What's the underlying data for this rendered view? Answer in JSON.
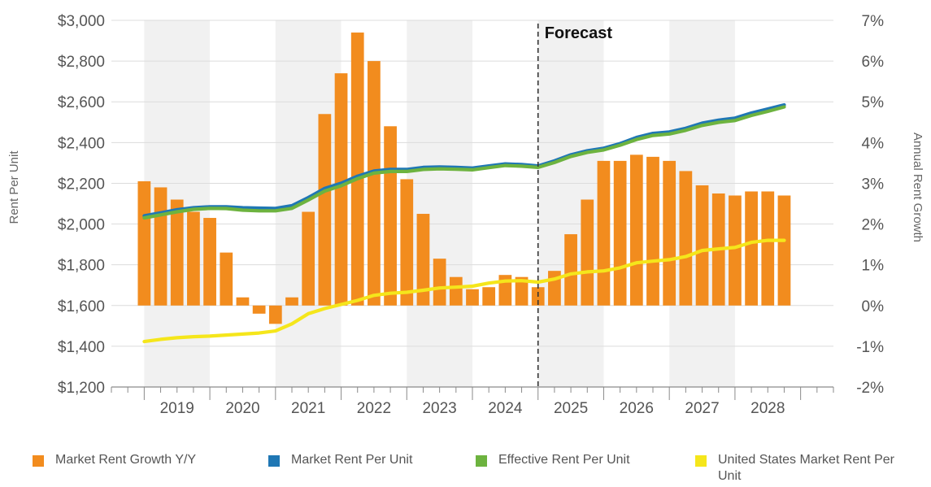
{
  "chart_data": {
    "type": "bar+line",
    "title": "",
    "annotation": "Forecast",
    "ylabel_left": "Rent Per Unit",
    "ylabel_right": "Annual Rent Growth",
    "ylim_left": [
      1200,
      3000
    ],
    "ylim_right": [
      -2,
      7
    ],
    "yticks_left": [
      "$1,200",
      "$1,400",
      "$1,600",
      "$1,800",
      "$2,000",
      "$2,200",
      "$2,400",
      "$2,600",
      "$2,800",
      "$3,000"
    ],
    "yticks_right": [
      "-2%",
      "-1%",
      "0%",
      "1%",
      "2%",
      "3%",
      "4%",
      "5%",
      "6%",
      "7%"
    ],
    "x_year_labels": [
      "2019",
      "2020",
      "2021",
      "2022",
      "2023",
      "2024",
      "2025",
      "2026",
      "2027",
      "2028"
    ],
    "forecast_start": 2024.5,
    "x_quarters": [
      2018.5,
      2018.75,
      2019.0,
      2019.25,
      2019.5,
      2019.75,
      2020.0,
      2020.25,
      2020.5,
      2020.75,
      2021.0,
      2021.25,
      2021.5,
      2021.75,
      2022.0,
      2022.25,
      2022.5,
      2022.75,
      2023.0,
      2023.25,
      2023.5,
      2023.75,
      2024.0,
      2024.25,
      2024.5,
      2024.75,
      2025.0,
      2025.25,
      2025.5,
      2025.75,
      2026.0,
      2026.25,
      2026.5,
      2026.75,
      2027.0,
      2027.25,
      2027.5,
      2027.75,
      2028.0,
      2028.25
    ],
    "series": [
      {
        "name": "Market Rent Growth Y/Y",
        "kind": "bar",
        "axis": "right",
        "unit": "%",
        "color": "#F28C1E",
        "values": [
          3.05,
          2.9,
          2.6,
          2.3,
          2.15,
          1.3,
          0.2,
          -0.2,
          -0.45,
          0.2,
          2.3,
          4.7,
          5.7,
          6.7,
          6.0,
          4.4,
          3.1,
          2.25,
          1.15,
          0.7,
          0.4,
          0.45,
          0.75,
          0.7,
          0.45,
          0.85,
          1.75,
          2.6,
          3.55,
          3.55,
          3.7,
          3.65,
          3.55,
          3.3,
          2.95,
          2.75,
          2.7,
          2.8,
          2.8,
          2.7
        ]
      },
      {
        "name": "Market Rent Per Unit",
        "kind": "line",
        "axis": "left",
        "color": "#1F77B4",
        "values": [
          2040,
          2055,
          2070,
          2080,
          2085,
          2085,
          2080,
          2078,
          2077,
          2090,
          2130,
          2175,
          2200,
          2235,
          2260,
          2268,
          2268,
          2278,
          2280,
          2278,
          2275,
          2285,
          2295,
          2292,
          2285,
          2310,
          2340,
          2360,
          2372,
          2395,
          2425,
          2445,
          2452,
          2470,
          2495,
          2510,
          2520,
          2545,
          2565,
          2585
        ]
      },
      {
        "name": "Effective Rent Per Unit",
        "kind": "line",
        "axis": "left",
        "color": "#6DB33F",
        "values": [
          2030,
          2045,
          2060,
          2072,
          2077,
          2076,
          2068,
          2065,
          2065,
          2077,
          2118,
          2162,
          2188,
          2223,
          2250,
          2258,
          2258,
          2268,
          2271,
          2269,
          2266,
          2277,
          2287,
          2284,
          2278,
          2302,
          2332,
          2352,
          2364,
          2387,
          2415,
          2435,
          2442,
          2460,
          2484,
          2499,
          2508,
          2533,
          2553,
          2575
        ]
      },
      {
        "name": "United States Market Rent Per Unit",
        "kind": "line",
        "axis": "left",
        "color": "#F5E61B",
        "values": [
          1423,
          1434,
          1442,
          1447,
          1450,
          1455,
          1460,
          1465,
          1475,
          1510,
          1560,
          1585,
          1605,
          1625,
          1650,
          1660,
          1665,
          1675,
          1686,
          1690,
          1695,
          1710,
          1720,
          1722,
          1715,
          1730,
          1755,
          1765,
          1770,
          1785,
          1810,
          1818,
          1825,
          1840,
          1870,
          1878,
          1885,
          1910,
          1920,
          1920
        ]
      }
    ],
    "legend": [
      "Market Rent Growth Y/Y",
      "Market Rent Per Unit",
      "Effective Rent Per Unit",
      "United States Market Rent Per Unit"
    ],
    "legend_position": "bottom"
  }
}
